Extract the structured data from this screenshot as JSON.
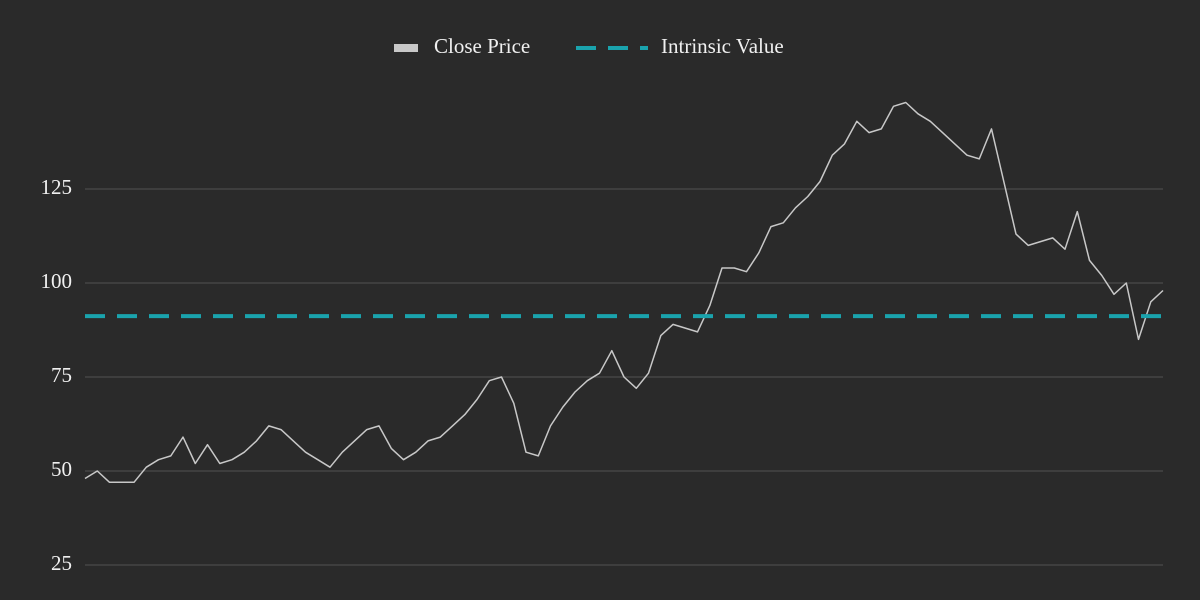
{
  "chart_data": {
    "type": "line",
    "series": [
      {
        "name": "Close Price",
        "color": "#c8c8c8",
        "values": [
          48,
          50,
          47,
          47,
          47,
          51,
          53,
          54,
          59,
          52,
          57,
          52,
          53,
          55,
          58,
          62,
          61,
          58,
          55,
          53,
          51,
          55,
          58,
          61,
          62,
          56,
          53,
          55,
          58,
          59,
          62,
          65,
          69,
          74,
          75,
          68,
          55,
          54,
          62,
          67,
          71,
          74,
          76,
          82,
          75,
          72,
          76,
          86,
          89,
          88,
          87,
          94,
          104,
          104,
          103,
          108,
          115,
          116,
          120,
          123,
          127,
          134,
          137,
          143,
          140,
          141,
          147,
          148,
          145,
          143,
          140,
          137,
          134,
          133,
          141,
          127,
          113,
          110,
          111,
          112,
          109,
          119,
          106,
          102,
          97,
          100,
          85,
          95,
          98
        ]
      }
    ],
    "reference_line": {
      "name": "Intrinsic Value",
      "value": 91.2,
      "color": "#1aa3ad",
      "dashed": true
    },
    "ylim": [
      16,
      152
    ],
    "yticks": [
      25,
      50,
      75,
      100,
      125
    ],
    "grid": true,
    "legend": "top"
  }
}
